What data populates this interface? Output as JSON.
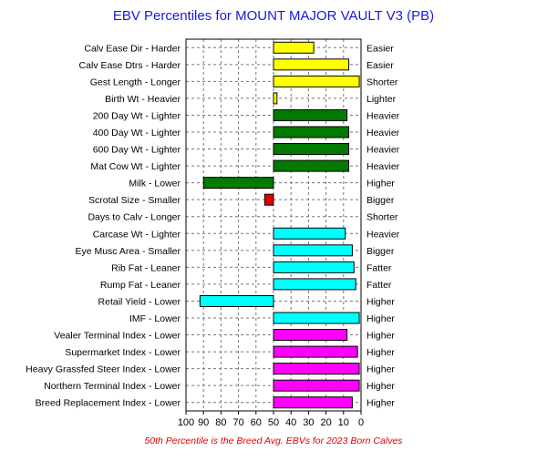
{
  "chart_data": {
    "type": "bar",
    "title": "EBV Percentiles for MOUNT MAJOR VAULT V3 (PB)",
    "footnote": "50th Percentile is the Breed Avg. EBVs for 2023 Born Calves",
    "xlim": [
      100,
      0
    ],
    "xticks": [
      "100",
      "90",
      "80",
      "70",
      "60",
      "50",
      "40",
      "30",
      "20",
      "10",
      "0"
    ],
    "grid": true,
    "baseline": 50,
    "categories": [
      "Calv Ease Dir - Harder",
      "Calv Ease Dtrs - Harder",
      "Gest Length - Longer",
      "Birth Wt - Heavier",
      "200 Day Wt - Lighter",
      "400 Day Wt - Lighter",
      "600 Day Wt - Lighter",
      "Mat Cow Wt - Lighter",
      "Milk - Lower",
      "Scrotal Size - Smaller",
      "Days to Calv - Longer",
      "Carcase Wt - Lighter",
      "Eye Musc Area - Smaller",
      "Rib Fat - Leaner",
      "Rump Fat - Leaner",
      "Retail Yield - Lower",
      "IMF - Lower",
      "Vealer Terminal Index - Lower",
      "Supermarket Index - Lower",
      "Heavy Grassfed Steer Index - Lower",
      "Northern Terminal Index - Lower",
      "Breed Replacement Index - Lower"
    ],
    "right_labels": [
      "Easier",
      "Easier",
      "Shorter",
      "Lighter",
      "Heavier",
      "Heavier",
      "Heavier",
      "Heavier",
      "Higher",
      "Bigger",
      "Shorter",
      "Heavier",
      "Bigger",
      "Fatter",
      "Fatter",
      "Higher",
      "Higher",
      "Higher",
      "Higher",
      "Higher",
      "Higher",
      "Higher"
    ],
    "values": [
      27,
      7,
      1,
      48,
      8,
      7,
      7,
      7,
      90,
      55,
      50,
      9,
      5,
      4,
      3,
      92,
      1,
      8,
      2,
      1,
      1,
      5
    ],
    "colors": [
      "#ffff00",
      "#ffff00",
      "#ffff00",
      "#ffff00",
      "#007a00",
      "#007a00",
      "#007a00",
      "#007a00",
      "#007a00",
      "#e00000",
      "#e00000",
      "#00ffff",
      "#00ffff",
      "#00ffff",
      "#00ffff",
      "#00ffff",
      "#00ffff",
      "#ff00ff",
      "#ff00ff",
      "#ff00ff",
      "#ff00ff",
      "#ff00ff"
    ]
  }
}
